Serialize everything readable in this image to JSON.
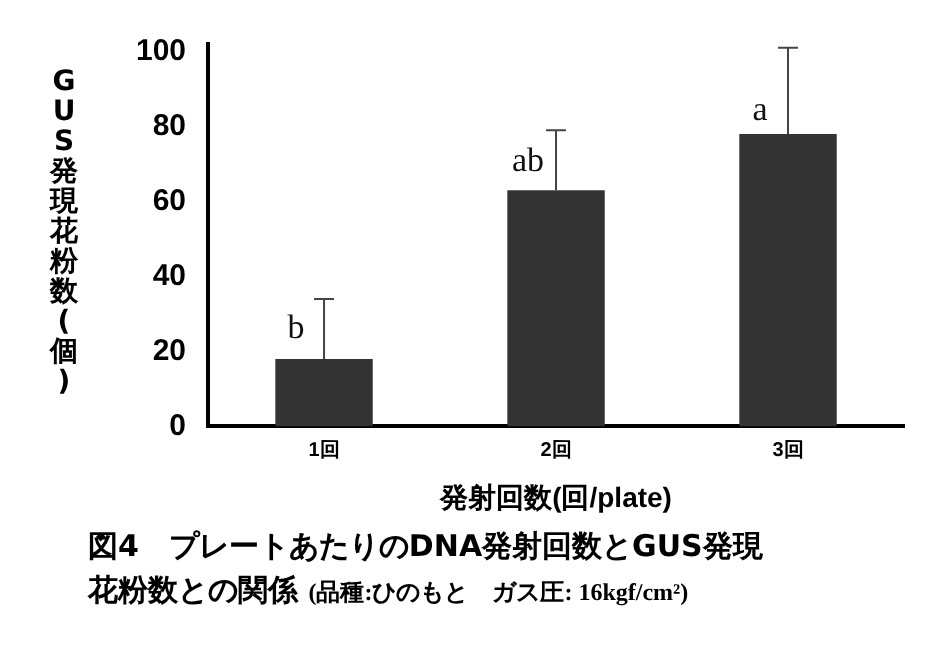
{
  "chart_data": {
    "type": "bar",
    "title": "図4　プレートあたりのDNA発射回数とGUS発現花粉数との関係",
    "subtitle": "(品種:ひのもと　ガス圧: 16kgf/cm²)",
    "xlabel": "発射回数(回/plate)",
    "ylabel": "GUS発現花粉数(個)",
    "categories": [
      "1回",
      "2回",
      "3回"
    ],
    "values": [
      18,
      63,
      78
    ],
    "errors": [
      [
        18,
        34
      ],
      [
        63,
        79
      ],
      [
        78,
        101
      ]
    ],
    "color": "#333333",
    "ylim": [
      0,
      102
    ],
    "yticks": [
      0,
      20,
      40,
      60,
      80,
      100
    ],
    "grid": false,
    "legend": false,
    "annotations": [
      {
        "text": "b",
        "x": "1回",
        "y": 26
      },
      {
        "text": "ab",
        "x": "2回",
        "y": 70.5
      },
      {
        "text": "a",
        "x": "3回",
        "y": 84
      }
    ]
  }
}
